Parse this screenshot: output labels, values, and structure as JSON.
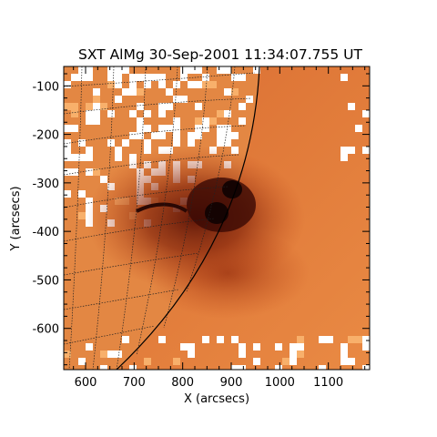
{
  "title": "SXT AlMg 30-Sep-2001 11:34:07.755 UT",
  "x_axis": {
    "label": "X (arcsecs)",
    "ticks": [
      "600",
      "700",
      "800",
      "900",
      "1000",
      "1100"
    ],
    "range": [
      555,
      1185
    ]
  },
  "y_axis": {
    "label": "Y (arcsecs)",
    "ticks": [
      "-100",
      "-200",
      "-300",
      "-400",
      "-500",
      "-600"
    ],
    "range": [
      -685,
      -60
    ]
  },
  "colors": {
    "background": "#ffffff",
    "axes": "#000000",
    "corona_bright": "#f6a35b",
    "corona_mid": "#d8622c",
    "active_region": "#6e1a08",
    "core": "#140302",
    "limb": "#000000"
  }
}
